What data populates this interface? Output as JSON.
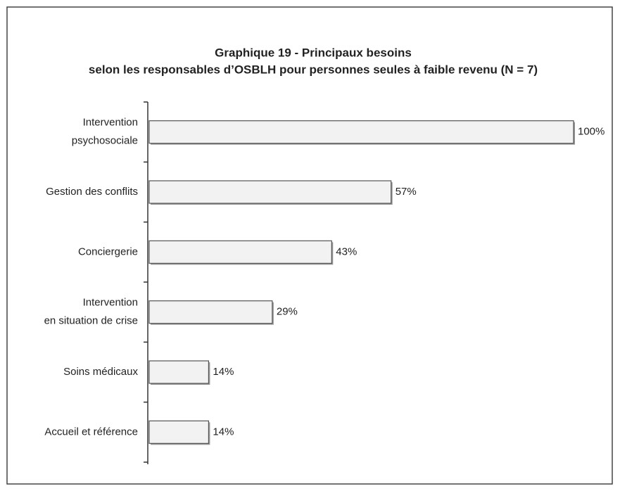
{
  "chart_data": {
    "type": "bar",
    "orientation": "horizontal",
    "title": "Graphique 19 - Principaux besoins",
    "subtitle": "selon les responsables d’OSBLH pour personnes seules à faible revenu (N = 7)",
    "categories": [
      [
        "Intervention",
        "psychosociale"
      ],
      [
        "Gestion des conflits"
      ],
      [
        "Conciergerie"
      ],
      [
        "Intervention",
        "en situation de crise"
      ],
      [
        "Soins médicaux"
      ],
      [
        "Accueil et référence"
      ]
    ],
    "values": [
      100,
      57,
      43,
      29,
      14,
      14
    ],
    "value_labels": [
      "100%",
      "57%",
      "43%",
      "29%",
      "14%",
      "14%"
    ],
    "color": "#f2f2f2"
  }
}
